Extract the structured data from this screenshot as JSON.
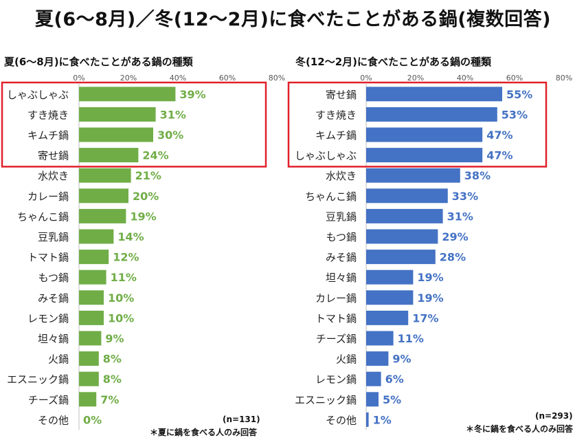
{
  "page_title": "夏(6～8月)／冬(12～2月)に食べたことがある鍋(複数回答)",
  "colors": {
    "summer": "#70AD47",
    "winter": "#4472C4",
    "highlight": "#E0202A"
  },
  "chart_data": [
    {
      "type": "bar",
      "orientation": "horizontal",
      "title": "夏(6～8月)に食べたことがある鍋の種類",
      "xlim": [
        0,
        80
      ],
      "ticks": [
        "0%",
        "20%",
        "40%",
        "60%",
        "80%"
      ],
      "grid": false,
      "categories": [
        "しゃぶしゃぶ",
        "すき焼き",
        "キムチ鍋",
        "寄せ鍋",
        "水炊き",
        "カレー鍋",
        "ちゃんこ鍋",
        "豆乳鍋",
        "トマト鍋",
        "もつ鍋",
        "みそ鍋",
        "レモン鍋",
        "坦々鍋",
        "火鍋",
        "エスニック鍋",
        "チーズ鍋",
        "その他"
      ],
      "values": [
        39,
        31,
        30,
        24,
        21,
        20,
        19,
        14,
        12,
        11,
        10,
        10,
        9,
        8,
        8,
        7,
        0
      ],
      "value_labels": [
        "39%",
        "31%",
        "30%",
        "24%",
        "21%",
        "20%",
        "19%",
        "14%",
        "12%",
        "11%",
        "10%",
        "10%",
        "9%",
        "8%",
        "8%",
        "7%",
        "0%"
      ],
      "highlighted_top": 4,
      "n_label": "(n=131)",
      "footnote": "＊夏に鍋を食べる人のみ回答"
    },
    {
      "type": "bar",
      "orientation": "horizontal",
      "title": "冬(12～2月)に食べたことがある鍋の種類",
      "xlim": [
        0,
        80
      ],
      "ticks": [
        "0%",
        "20%",
        "40%",
        "60%",
        "80%"
      ],
      "grid": false,
      "categories": [
        "寄せ鍋",
        "すき焼き",
        "キムチ鍋",
        "しゃぶしゃぶ",
        "水炊き",
        "ちゃんこ鍋",
        "豆乳鍋",
        "もつ鍋",
        "みそ鍋",
        "坦々鍋",
        "カレー鍋",
        "トマト鍋",
        "チーズ鍋",
        "火鍋",
        "レモン鍋",
        "エスニック鍋",
        "その他"
      ],
      "values": [
        55,
        53,
        47,
        47,
        38,
        33,
        31,
        29,
        28,
        19,
        19,
        17,
        11,
        9,
        6,
        5,
        1
      ],
      "value_labels": [
        "55%",
        "53%",
        "47%",
        "47%",
        "38%",
        "33%",
        "31%",
        "29%",
        "28%",
        "19%",
        "19%",
        "17%",
        "11%",
        "9%",
        "6%",
        "5%",
        "1%"
      ],
      "highlighted_top": 4,
      "n_label": "(n=293)",
      "footnote": "＊冬に鍋を食べる人のみ回答"
    }
  ]
}
